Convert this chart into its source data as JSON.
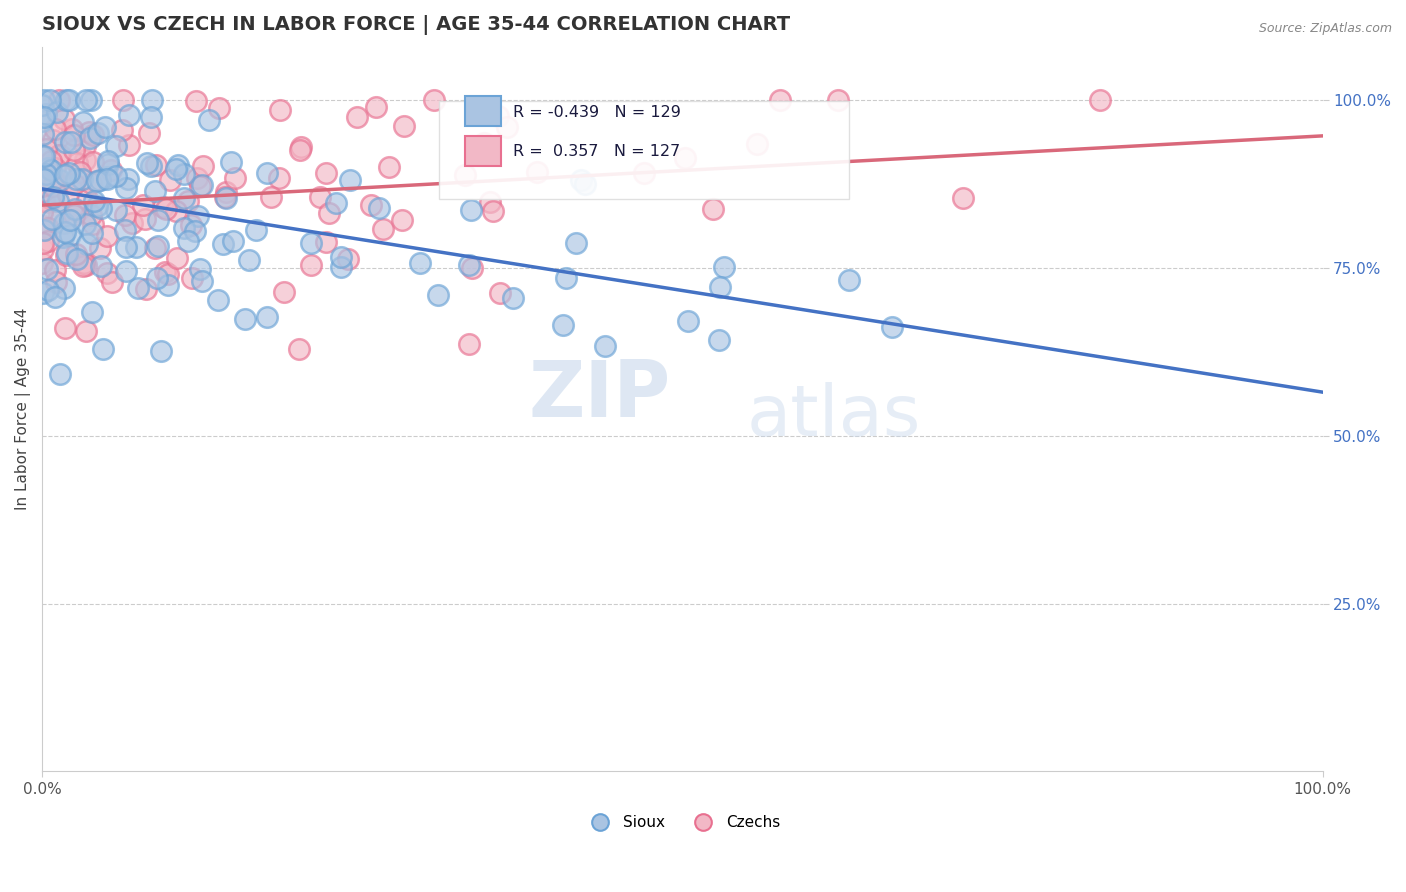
{
  "title": "SIOUX VS CZECH IN LABOR FORCE | AGE 35-44 CORRELATION CHART",
  "source_text": "Source: ZipAtlas.com",
  "ylabel": "In Labor Force | Age 35-44",
  "sioux_R": -0.439,
  "sioux_N": 129,
  "czech_R": 0.357,
  "czech_N": 127,
  "sioux_color": "#aac4e2",
  "czech_color": "#f2b8c6",
  "sioux_edge_color": "#6ba3d6",
  "czech_edge_color": "#e87090",
  "sioux_line_color": "#4472C4",
  "czech_line_color": "#d9687a",
  "background_color": "#ffffff",
  "grid_color": "#cccccc",
  "title_fontsize": 14,
  "watermark_zip": "ZIP",
  "watermark_atlas": "atlas",
  "legend_label_sioux": "Sioux",
  "legend_label_czech": "Czechs",
  "sioux_trend_x0": 0.0,
  "sioux_trend_y0": 0.88,
  "sioux_trend_x1": 1.0,
  "sioux_trend_y1": 0.55,
  "czech_trend_x0": 0.0,
  "czech_trend_y0": 0.845,
  "czech_trend_x1": 1.0,
  "czech_trend_y1": 1.0,
  "ylim_min": 0.0,
  "ylim_max": 1.08,
  "xlim_min": 0.0,
  "xlim_max": 1.0
}
